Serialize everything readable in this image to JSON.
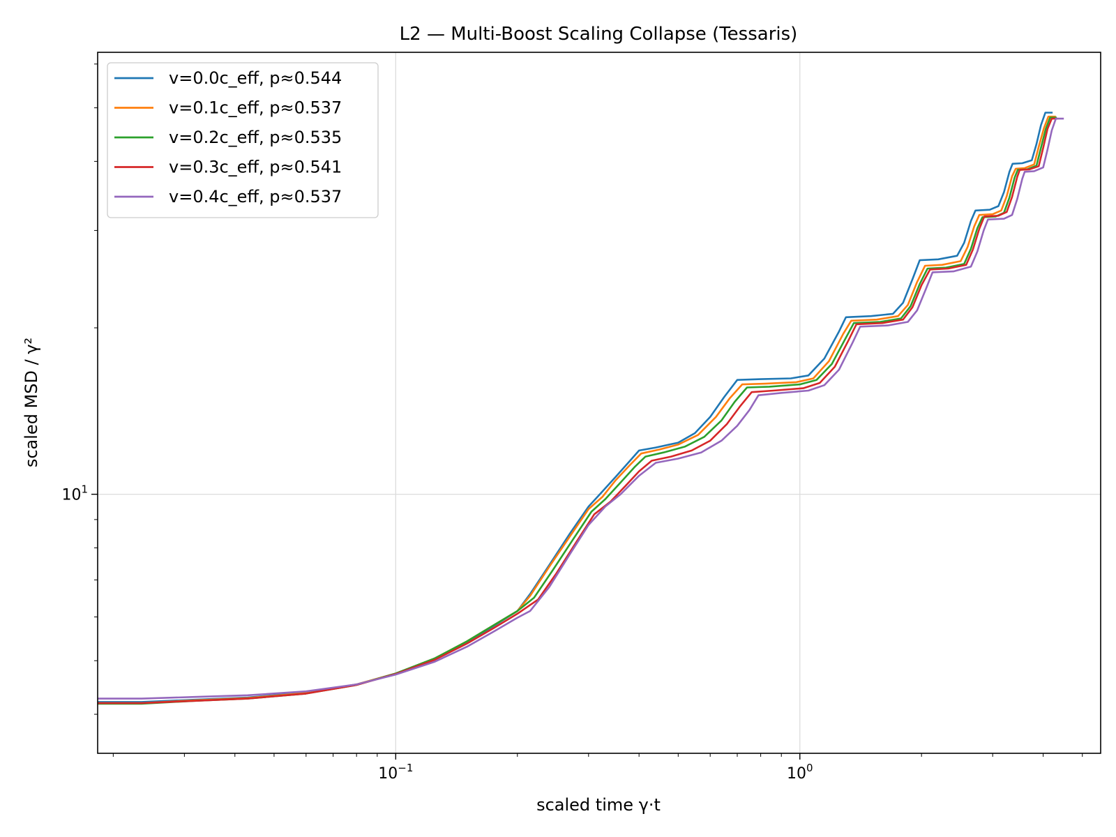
{
  "chart_data": {
    "type": "line",
    "title": "L2 — Multi-Boost Scaling Collapse (Tessaris)",
    "xlabel": "scaled time γ·t",
    "ylabel": "scaled MSD / γ²",
    "xscale": "log",
    "yscale": "log",
    "xlim": [
      0.0183,
      5.55
    ],
    "ylim": [
      3.4,
      63
    ],
    "grid": true,
    "legend_position": "top-left",
    "x_ticks": [
      {
        "value": 0.1,
        "base": "10",
        "exp": "−1"
      },
      {
        "value": 1,
        "base": "10",
        "exp": "0"
      }
    ],
    "y_ticks": [
      {
        "value": 10,
        "base": "10",
        "exp": "1"
      }
    ],
    "series": [
      {
        "name": "v=0.0c_eff, p≈0.544",
        "color": "#1f77b4",
        "data": [
          [
            0.0183,
            4.21
          ],
          [
            0.0235,
            4.21
          ],
          [
            0.0318,
            4.25
          ],
          [
            0.043,
            4.29
          ],
          [
            0.06,
            4.38
          ],
          [
            0.08,
            4.53
          ],
          [
            0.1,
            4.74
          ],
          [
            0.125,
            5.05
          ],
          [
            0.15,
            5.4
          ],
          [
            0.175,
            5.78
          ],
          [
            0.2,
            6.15
          ],
          [
            0.215,
            6.6
          ],
          [
            0.24,
            7.45
          ],
          [
            0.27,
            8.5
          ],
          [
            0.3,
            9.5
          ],
          [
            0.32,
            10.0
          ],
          [
            0.35,
            10.75
          ],
          [
            0.38,
            11.5
          ],
          [
            0.4,
            12.0
          ],
          [
            0.44,
            12.15
          ],
          [
            0.5,
            12.4
          ],
          [
            0.55,
            12.9
          ],
          [
            0.6,
            13.8
          ],
          [
            0.65,
            15.0
          ],
          [
            0.7,
            16.1
          ],
          [
            0.8,
            16.15
          ],
          [
            0.95,
            16.2
          ],
          [
            1.05,
            16.4
          ],
          [
            1.15,
            17.6
          ],
          [
            1.25,
            19.7
          ],
          [
            1.3,
            20.9
          ],
          [
            1.5,
            21.0
          ],
          [
            1.7,
            21.2
          ],
          [
            1.8,
            22.2
          ],
          [
            1.9,
            24.5
          ],
          [
            1.98,
            26.5
          ],
          [
            2.2,
            26.6
          ],
          [
            2.45,
            27.0
          ],
          [
            2.55,
            28.5
          ],
          [
            2.65,
            31.2
          ],
          [
            2.72,
            32.6
          ],
          [
            2.95,
            32.7
          ],
          [
            3.1,
            33.2
          ],
          [
            3.2,
            35.2
          ],
          [
            3.3,
            38.3
          ],
          [
            3.36,
            39.6
          ],
          [
            3.55,
            39.7
          ],
          [
            3.75,
            40.2
          ],
          [
            3.85,
            43.0
          ],
          [
            3.95,
            46.5
          ],
          [
            4.05,
            49.0
          ],
          [
            4.22,
            49.0
          ]
        ]
      },
      {
        "name": "v=0.1c_eff, p≈0.537",
        "color": "#ff7f0e",
        "data": [
          [
            0.0183,
            4.19
          ],
          [
            0.0235,
            4.19
          ],
          [
            0.0318,
            4.24
          ],
          [
            0.043,
            4.28
          ],
          [
            0.06,
            4.37
          ],
          [
            0.08,
            4.53
          ],
          [
            0.1,
            4.74
          ],
          [
            0.125,
            5.05
          ],
          [
            0.15,
            5.42
          ],
          [
            0.175,
            5.8
          ],
          [
            0.2,
            6.15
          ],
          [
            0.215,
            6.55
          ],
          [
            0.24,
            7.4
          ],
          [
            0.27,
            8.4
          ],
          [
            0.3,
            9.4
          ],
          [
            0.325,
            9.9
          ],
          [
            0.35,
            10.6
          ],
          [
            0.38,
            11.3
          ],
          [
            0.405,
            11.85
          ],
          [
            0.45,
            12.05
          ],
          [
            0.5,
            12.3
          ],
          [
            0.56,
            12.8
          ],
          [
            0.62,
            13.8
          ],
          [
            0.67,
            14.9
          ],
          [
            0.72,
            15.8
          ],
          [
            0.82,
            15.85
          ],
          [
            0.98,
            15.95
          ],
          [
            1.08,
            16.2
          ],
          [
            1.18,
            17.4
          ],
          [
            1.28,
            19.5
          ],
          [
            1.34,
            20.6
          ],
          [
            1.55,
            20.7
          ],
          [
            1.75,
            21.0
          ],
          [
            1.85,
            22.0
          ],
          [
            1.95,
            24.2
          ],
          [
            2.04,
            25.9
          ],
          [
            2.25,
            26.0
          ],
          [
            2.5,
            26.4
          ],
          [
            2.6,
            28.0
          ],
          [
            2.7,
            30.5
          ],
          [
            2.78,
            32.0
          ],
          [
            3.0,
            32.1
          ],
          [
            3.15,
            32.6
          ],
          [
            3.25,
            34.6
          ],
          [
            3.35,
            37.6
          ],
          [
            3.42,
            38.8
          ],
          [
            3.6,
            38.9
          ],
          [
            3.8,
            39.5
          ],
          [
            3.9,
            42.5
          ],
          [
            4.02,
            46.0
          ],
          [
            4.12,
            48.2
          ],
          [
            4.3,
            48.2
          ]
        ]
      },
      {
        "name": "v=0.2c_eff, p≈0.535",
        "color": "#2ca02c",
        "data": [
          [
            0.0183,
            4.18
          ],
          [
            0.0235,
            4.18
          ],
          [
            0.0318,
            4.23
          ],
          [
            0.043,
            4.27
          ],
          [
            0.06,
            4.36
          ],
          [
            0.08,
            4.52
          ],
          [
            0.1,
            4.74
          ],
          [
            0.125,
            5.05
          ],
          [
            0.15,
            5.42
          ],
          [
            0.175,
            5.8
          ],
          [
            0.2,
            6.15
          ],
          [
            0.22,
            6.5
          ],
          [
            0.245,
            7.3
          ],
          [
            0.275,
            8.3
          ],
          [
            0.305,
            9.3
          ],
          [
            0.33,
            9.8
          ],
          [
            0.36,
            10.5
          ],
          [
            0.39,
            11.2
          ],
          [
            0.415,
            11.7
          ],
          [
            0.46,
            11.9
          ],
          [
            0.52,
            12.2
          ],
          [
            0.58,
            12.7
          ],
          [
            0.64,
            13.6
          ],
          [
            0.69,
            14.7
          ],
          [
            0.74,
            15.6
          ],
          [
            0.84,
            15.65
          ],
          [
            1.0,
            15.8
          ],
          [
            1.1,
            16.1
          ],
          [
            1.2,
            17.2
          ],
          [
            1.3,
            19.2
          ],
          [
            1.36,
            20.4
          ],
          [
            1.58,
            20.5
          ],
          [
            1.78,
            20.8
          ],
          [
            1.88,
            21.9
          ],
          [
            1.98,
            24.0
          ],
          [
            2.07,
            25.6
          ],
          [
            2.3,
            25.7
          ],
          [
            2.55,
            26.1
          ],
          [
            2.65,
            27.8
          ],
          [
            2.75,
            30.3
          ],
          [
            2.83,
            31.7
          ],
          [
            3.05,
            31.8
          ],
          [
            3.2,
            32.3
          ],
          [
            3.3,
            34.4
          ],
          [
            3.4,
            37.4
          ],
          [
            3.46,
            38.6
          ],
          [
            3.65,
            38.7
          ],
          [
            3.85,
            39.3
          ],
          [
            3.95,
            42.3
          ],
          [
            4.06,
            45.8
          ],
          [
            4.16,
            48.0
          ],
          [
            4.32,
            48.0
          ]
        ]
      },
      {
        "name": "v=0.3c_eff, p≈0.541",
        "color": "#d62728",
        "data": [
          [
            0.0183,
            4.19
          ],
          [
            0.0235,
            4.19
          ],
          [
            0.0318,
            4.23
          ],
          [
            0.043,
            4.27
          ],
          [
            0.06,
            4.36
          ],
          [
            0.08,
            4.52
          ],
          [
            0.1,
            4.73
          ],
          [
            0.125,
            5.02
          ],
          [
            0.15,
            5.37
          ],
          [
            0.175,
            5.73
          ],
          [
            0.2,
            6.08
          ],
          [
            0.225,
            6.45
          ],
          [
            0.25,
            7.2
          ],
          [
            0.28,
            8.2
          ],
          [
            0.31,
            9.2
          ],
          [
            0.34,
            9.7
          ],
          [
            0.37,
            10.35
          ],
          [
            0.4,
            11.0
          ],
          [
            0.43,
            11.5
          ],
          [
            0.48,
            11.7
          ],
          [
            0.54,
            12.0
          ],
          [
            0.6,
            12.5
          ],
          [
            0.66,
            13.4
          ],
          [
            0.71,
            14.4
          ],
          [
            0.76,
            15.3
          ],
          [
            0.86,
            15.4
          ],
          [
            1.02,
            15.55
          ],
          [
            1.12,
            15.9
          ],
          [
            1.22,
            17.0
          ],
          [
            1.32,
            19.0
          ],
          [
            1.38,
            20.3
          ],
          [
            1.6,
            20.4
          ],
          [
            1.8,
            20.7
          ],
          [
            1.9,
            21.8
          ],
          [
            2.0,
            23.9
          ],
          [
            2.1,
            25.5
          ],
          [
            2.33,
            25.6
          ],
          [
            2.58,
            26.0
          ],
          [
            2.68,
            27.7
          ],
          [
            2.78,
            30.2
          ],
          [
            2.86,
            31.8
          ],
          [
            3.1,
            31.9
          ],
          [
            3.25,
            32.4
          ],
          [
            3.35,
            34.5
          ],
          [
            3.45,
            37.5
          ],
          [
            3.5,
            38.6
          ],
          [
            3.7,
            38.7
          ],
          [
            3.9,
            39.2
          ],
          [
            4.0,
            42.3
          ],
          [
            4.1,
            45.8
          ],
          [
            4.2,
            47.8
          ],
          [
            4.35,
            47.8
          ]
        ]
      },
      {
        "name": "v=0.4c_eff, p≈0.537",
        "color": "#9467bd",
        "data": [
          [
            0.0183,
            4.27
          ],
          [
            0.0235,
            4.27
          ],
          [
            0.0318,
            4.3
          ],
          [
            0.043,
            4.33
          ],
          [
            0.06,
            4.4
          ],
          [
            0.08,
            4.53
          ],
          [
            0.1,
            4.72
          ],
          [
            0.125,
            4.98
          ],
          [
            0.15,
            5.3
          ],
          [
            0.175,
            5.65
          ],
          [
            0.2,
            5.98
          ],
          [
            0.215,
            6.15
          ],
          [
            0.24,
            6.8
          ],
          [
            0.27,
            7.8
          ],
          [
            0.3,
            8.8
          ],
          [
            0.33,
            9.5
          ],
          [
            0.36,
            10.0
          ],
          [
            0.4,
            10.8
          ],
          [
            0.44,
            11.4
          ],
          [
            0.5,
            11.6
          ],
          [
            0.57,
            11.9
          ],
          [
            0.64,
            12.5
          ],
          [
            0.7,
            13.3
          ],
          [
            0.75,
            14.2
          ],
          [
            0.79,
            15.1
          ],
          [
            0.9,
            15.25
          ],
          [
            1.05,
            15.4
          ],
          [
            1.15,
            15.75
          ],
          [
            1.25,
            16.8
          ],
          [
            1.35,
            18.8
          ],
          [
            1.41,
            20.1
          ],
          [
            1.65,
            20.2
          ],
          [
            1.85,
            20.5
          ],
          [
            1.95,
            21.5
          ],
          [
            2.05,
            23.5
          ],
          [
            2.13,
            25.2
          ],
          [
            2.4,
            25.3
          ],
          [
            2.65,
            25.8
          ],
          [
            2.75,
            27.5
          ],
          [
            2.85,
            30.0
          ],
          [
            2.92,
            31.4
          ],
          [
            3.2,
            31.5
          ],
          [
            3.35,
            32.0
          ],
          [
            3.45,
            34.2
          ],
          [
            3.55,
            37.2
          ],
          [
            3.6,
            38.3
          ],
          [
            3.8,
            38.4
          ],
          [
            4.0,
            39.0
          ],
          [
            4.1,
            42.0
          ],
          [
            4.2,
            45.5
          ],
          [
            4.3,
            47.8
          ],
          [
            4.5,
            47.8
          ]
        ]
      }
    ]
  }
}
